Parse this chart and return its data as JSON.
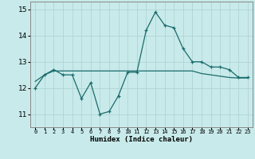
{
  "xlabel": "Humidex (Indice chaleur)",
  "bg_color": "#c8eaea",
  "line_color": "#1a6b6b",
  "grid_color": "#b0d4d4",
  "x_values": [
    0,
    1,
    2,
    3,
    4,
    5,
    6,
    7,
    8,
    9,
    10,
    11,
    12,
    13,
    14,
    15,
    16,
    17,
    18,
    19,
    20,
    21,
    22,
    23
  ],
  "y_main": [
    12.0,
    12.5,
    12.7,
    12.5,
    12.5,
    11.6,
    12.2,
    11.0,
    11.1,
    11.7,
    12.6,
    12.6,
    14.2,
    14.9,
    14.4,
    14.3,
    13.5,
    13.0,
    13.0,
    12.8,
    12.8,
    12.7,
    12.4,
    12.4
  ],
  "y_smooth": [
    12.25,
    12.5,
    12.65,
    12.65,
    12.65,
    12.65,
    12.65,
    12.65,
    12.65,
    12.65,
    12.65,
    12.65,
    12.65,
    12.65,
    12.65,
    12.65,
    12.65,
    12.65,
    12.55,
    12.5,
    12.45,
    12.4,
    12.38,
    12.38
  ],
  "ylim": [
    10.5,
    15.3
  ],
  "yticks": [
    11,
    12,
    13,
    14,
    15
  ],
  "xlim": [
    -0.5,
    23.5
  ]
}
